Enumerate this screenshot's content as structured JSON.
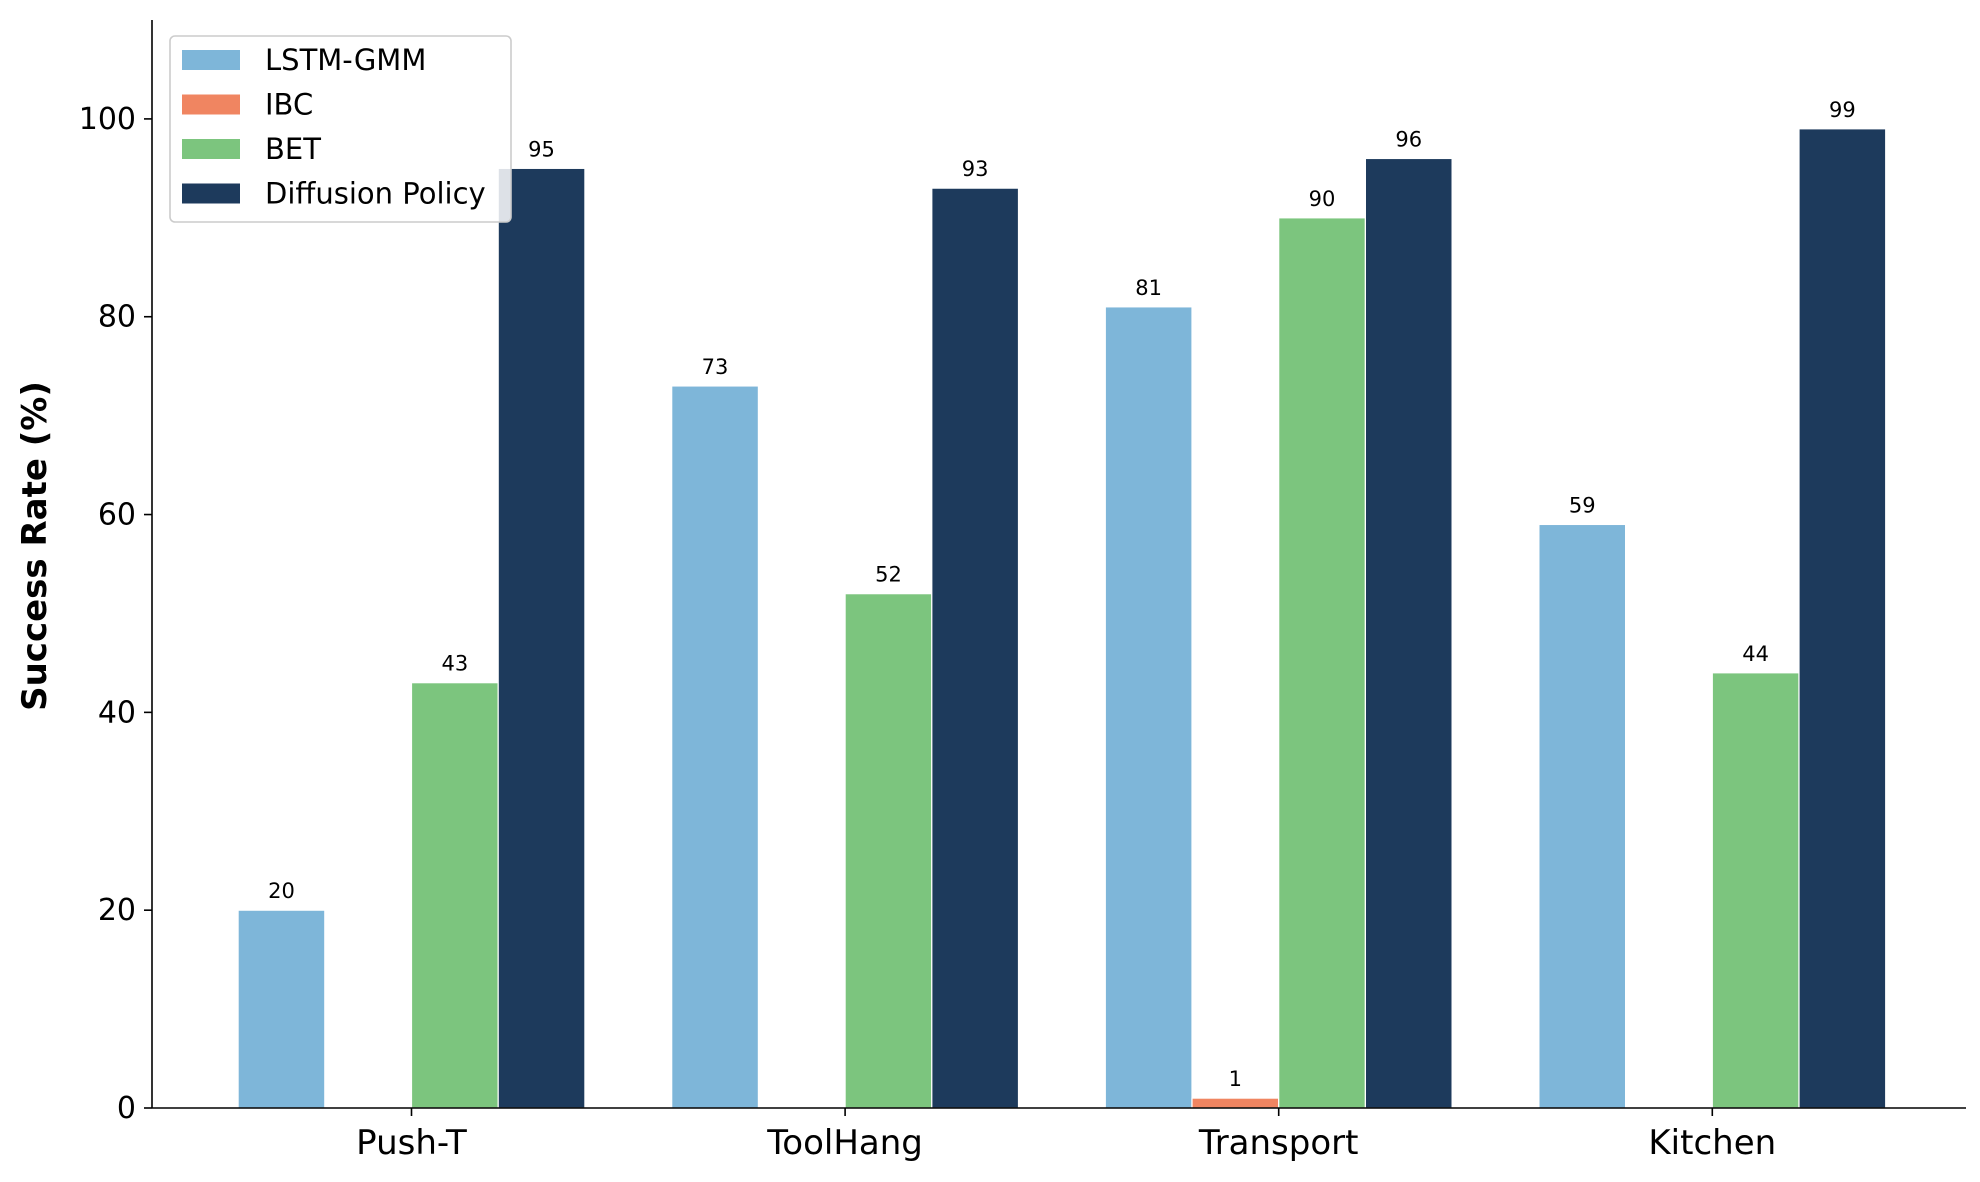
{
  "chart_data": {
    "type": "bar",
    "title": "",
    "xlabel": "",
    "ylabel": "Success Rate (%)",
    "ylim": [
      0,
      110
    ],
    "yticks": [
      0,
      20,
      40,
      60,
      80,
      100
    ],
    "grid": false,
    "legend_position": "top-left",
    "categories": [
      "Push-T",
      "ToolHang",
      "Transport",
      "Kitchen"
    ],
    "series": [
      {
        "name": "LSTM-GMM",
        "color": "#7eb6d9",
        "values": [
          20,
          73,
          81,
          59
        ]
      },
      {
        "name": "IBC",
        "color": "#f08561",
        "values": [
          0,
          0,
          1,
          0
        ]
      },
      {
        "name": "BET",
        "color": "#7cc57e",
        "values": [
          43,
          52,
          90,
          44
        ]
      },
      {
        "name": "Diffusion Policy",
        "color": "#1d3a5c",
        "values": [
          95,
          93,
          96,
          99
        ]
      }
    ]
  }
}
